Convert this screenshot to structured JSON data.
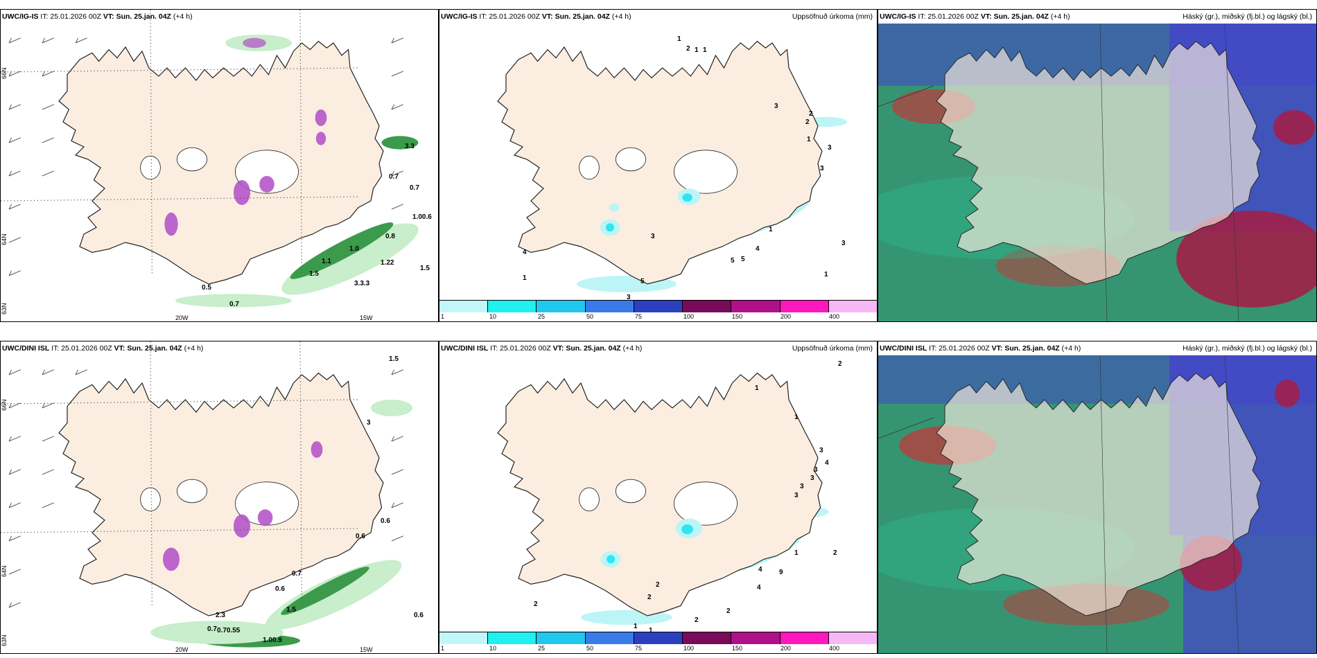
{
  "colors": {
    "land": "#fbeee0",
    "coast": "#222222",
    "sea": "#ffffff",
    "precip_light": "#bdf5f7",
    "precip_mid": "#2fe6f0",
    "wind_green": "#3c9a4c",
    "wind_green_light": "#c8eecb",
    "purple": "#b04cc8",
    "cloud_high": "#4444cc",
    "cloud_mid": "#c03a3a",
    "cloud_low": "#1f8a64",
    "teal": "#2bbf8f"
  },
  "colorbar": {
    "ticks": [
      "1",
      "10",
      "25",
      "50",
      "75",
      "100",
      "150",
      "200",
      "400"
    ],
    "colors": [
      "#c2f7fa",
      "#1ff0f0",
      "#20c8ee",
      "#3a7bea",
      "#2c3fbf",
      "#7a0a5a",
      "#b0108a",
      "#ff18c0",
      "#f6b8f4"
    ]
  },
  "panels": [
    {
      "id": "a1",
      "title_model": "UWC/IG-IS",
      "title_it": "IT: 25.01.2026 00Z",
      "title_vt_label": "VT: Sun. 25.jan. 04Z",
      "title_plus": "(+4 h)",
      "right_label": "",
      "axis": {
        "lon_left": "20W",
        "lon_right": "15W",
        "lat_top": "66N",
        "lat_mid": "64N",
        "lat_bottom": "63N"
      },
      "numbers": [
        "3.3",
        "0.7",
        "0.7",
        "1.00.6",
        "0.8",
        "1.0",
        "1.22",
        "1.5",
        "3.3.3",
        "0.7",
        "1.1",
        "1.5",
        "0.5"
      ]
    },
    {
      "id": "a2",
      "title_model": "UWC/IG-IS",
      "title_it": "IT: 25.01.2026 00Z",
      "title_vt_label": "VT: Sun. 25.jan. 04Z",
      "title_plus": "(+4 h)",
      "right_label": "Uppsöfnuð úrkoma (mm)",
      "numbers": [
        "1",
        "2",
        "1",
        "1",
        "3",
        "2",
        "2",
        "1",
        "3",
        "3",
        "1",
        "4",
        "5",
        "5",
        "4",
        "3",
        "1",
        "1",
        "3",
        "3",
        "5"
      ]
    },
    {
      "id": "a3",
      "title_model": "UWC/IG-IS",
      "title_it": "IT: 25.01.2026 00Z",
      "title_vt_label": "VT: Sun. 25.jan. 04Z",
      "title_plus": "(+4 h)",
      "right_label": "Háský (gr.), miðský (fj.bl.) og lágský (bl.)"
    },
    {
      "id": "b1",
      "title_model": "UWC/DINI ISL",
      "title_it": "IT: 25.01.2026 00Z",
      "title_vt_label": "VT: Sun. 25.jan. 04Z",
      "title_plus": "(+4 h)",
      "right_label": "",
      "axis": {
        "lon_left": "20W",
        "lon_right": "15W",
        "lat_top": "66N",
        "lat_mid": "64N",
        "lat_bottom": "63N"
      },
      "numbers": [
        "1.5",
        "3",
        "0.6",
        "0.6",
        "0.7",
        "1.5",
        "0.6",
        "0.7",
        "0.70.55",
        "1.00.9",
        "0.6",
        "2.3"
      ]
    },
    {
      "id": "b2",
      "title_model": "UWC/DINI ISL",
      "title_it": "IT: 25.01.2026 00Z",
      "title_vt_label": "VT: Sun. 25.jan. 04Z",
      "title_plus": "(+4 h)",
      "right_label": "Uppsöfnuð úrkoma (mm)",
      "numbers": [
        "2",
        "1",
        "1",
        "3",
        "4",
        "3",
        "3",
        "3",
        "3",
        "2",
        "1",
        "4",
        "9",
        "4",
        "2",
        "2",
        "2",
        "2",
        "1",
        "1",
        "2"
      ]
    },
    {
      "id": "b3",
      "title_model": "UWC/DINI ISL",
      "title_it": "IT: 25.01.2026 00Z",
      "title_vt_label": "VT: Sun. 25.jan. 04Z",
      "title_plus": "(+4 h)",
      "right_label": "Háský (gr.), miðský (fj.bl.) og lágský (bl.)"
    }
  ]
}
